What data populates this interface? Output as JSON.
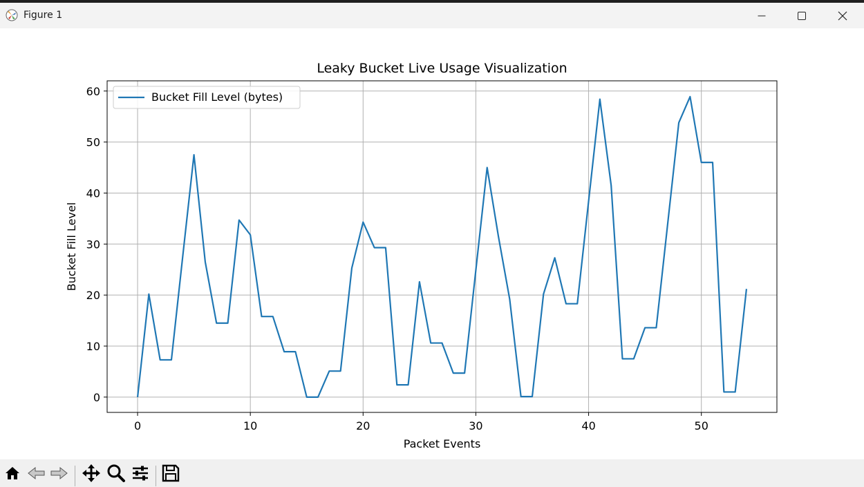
{
  "window": {
    "title": "Figure 1"
  },
  "toolbar": {
    "buttons": [
      "home-icon",
      "back-icon",
      "forward-icon",
      "pan-icon",
      "zoom-icon",
      "configure-subplots-icon",
      "save-icon"
    ]
  },
  "colors": {
    "line": "#1f77b4",
    "grid": "#b0b0b0",
    "titlebar": "#f3f3f3",
    "toolbar": "#f0f0f0"
  },
  "chart_data": {
    "type": "line",
    "title": "Leaky Bucket Live Usage Visualization",
    "xlabel": "Packet Events",
    "ylabel": "Bucket Fill Level",
    "xlim": [
      -2.7,
      56.7
    ],
    "ylim": [
      -3,
      62
    ],
    "xticks": [
      0,
      10,
      20,
      30,
      40,
      50
    ],
    "yticks": [
      0,
      10,
      20,
      30,
      40,
      50,
      60
    ],
    "grid": true,
    "legend": {
      "placement": "upper-left"
    },
    "series": [
      {
        "name": "Bucket Fill Level (bytes)",
        "x": [
          0,
          1,
          2,
          3,
          4,
          5,
          6,
          7,
          8,
          9,
          10,
          11,
          12,
          13,
          14,
          15,
          16,
          17,
          18,
          19,
          20,
          21,
          22,
          23,
          24,
          25,
          26,
          27,
          28,
          29,
          30,
          31,
          32,
          33,
          34,
          35,
          36,
          37,
          38,
          39,
          40,
          41,
          42,
          43,
          44,
          45,
          46,
          47,
          48,
          49,
          50,
          51,
          52,
          53,
          54
        ],
        "y": [
          0,
          20.2,
          7.3,
          7.3,
          27.5,
          47.5,
          26.5,
          14.5,
          14.5,
          34.7,
          31.8,
          15.8,
          15.8,
          8.9,
          8.9,
          0,
          0,
          5.1,
          5.1,
          25.3,
          34.3,
          29.3,
          29.3,
          2.4,
          2.4,
          22.6,
          10.6,
          10.6,
          4.7,
          4.7,
          24.9,
          45,
          31.5,
          19.2,
          0.1,
          0.1,
          20.2,
          27.3,
          18.3,
          18.3,
          38.4,
          58.4,
          41.5,
          7.5,
          7.5,
          13.6,
          13.6,
          33.7,
          53.8,
          58.9,
          46,
          46,
          1,
          1,
          21.2
        ]
      }
    ]
  }
}
